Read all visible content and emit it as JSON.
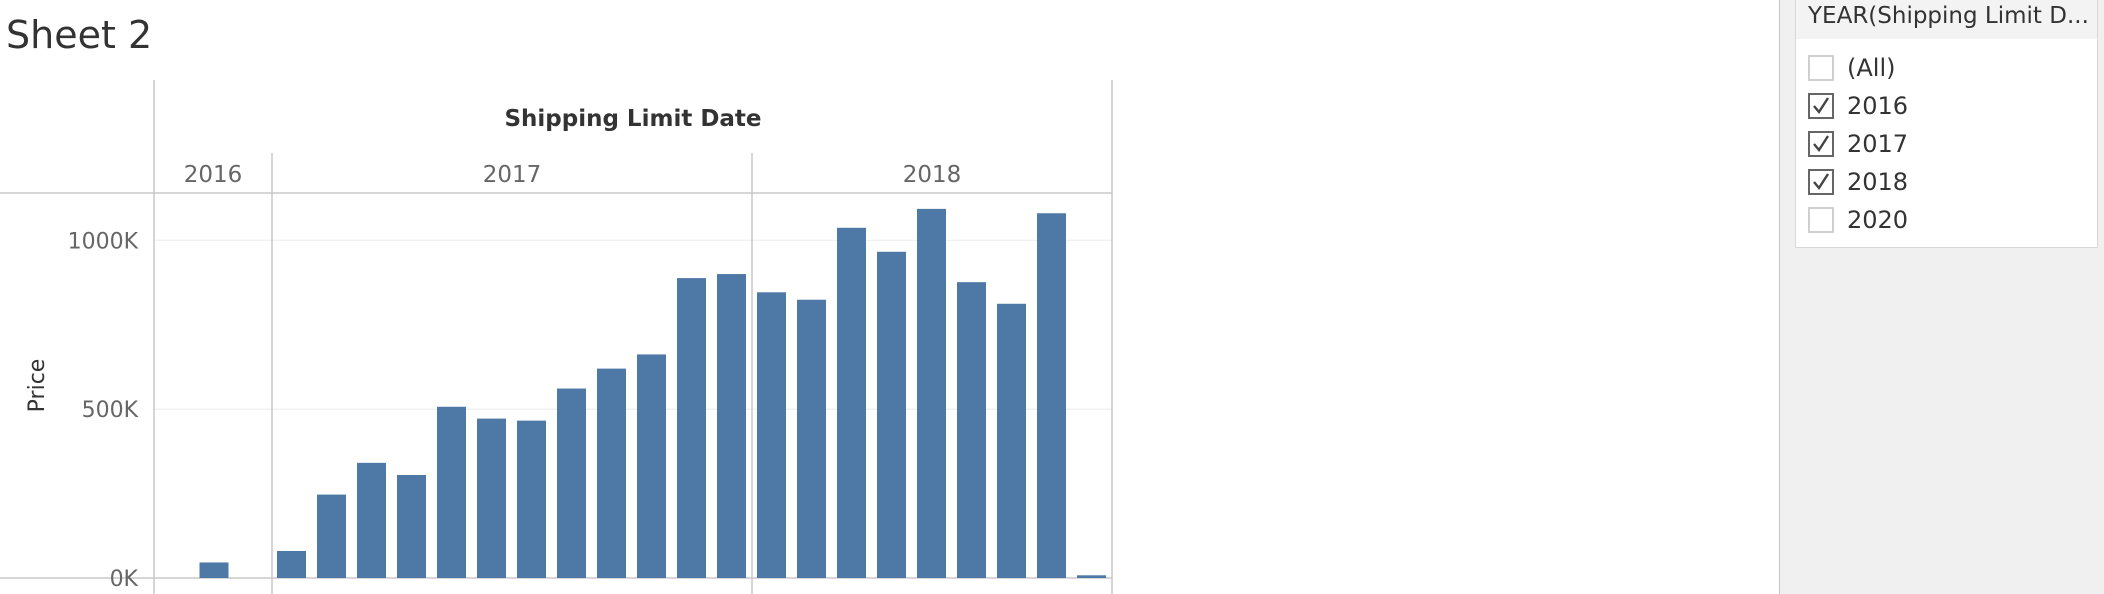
{
  "sheet": {
    "title": "Sheet 2"
  },
  "filter": {
    "title": "YEAR(Shipping Limit D...",
    "items": [
      {
        "label": "(All)",
        "checked": false
      },
      {
        "label": "2016",
        "checked": true
      },
      {
        "label": "2017",
        "checked": true
      },
      {
        "label": "2018",
        "checked": true
      },
      {
        "label": "2020",
        "checked": false
      }
    ]
  },
  "colors": {
    "bar": "#4e79a7",
    "gridline": "#ebebeb",
    "divider": "#c8c8c8"
  },
  "chart_data": {
    "type": "bar",
    "column_header": "Shipping Limit Date",
    "year_labels": [
      "2016",
      "2017",
      "2018"
    ],
    "ylabel": "Price",
    "y_ticks": [
      {
        "value": 0,
        "label": "0K"
      },
      {
        "value": 500000,
        "label": "500K"
      },
      {
        "value": 1000000,
        "label": "1000K"
      }
    ],
    "ylim": [
      0,
      1140000
    ],
    "series": [
      {
        "year": "2016",
        "values": [
          46000
        ]
      },
      {
        "year": "2017",
        "values": [
          80000,
          247000,
          341000,
          305000,
          507000,
          472000,
          466000,
          561000,
          620000,
          662000,
          888000,
          900000
        ]
      },
      {
        "year": "2018",
        "values": [
          846000,
          824000,
          1037000,
          966000,
          1093000,
          876000,
          812000,
          1080000,
          8000
        ]
      }
    ]
  }
}
